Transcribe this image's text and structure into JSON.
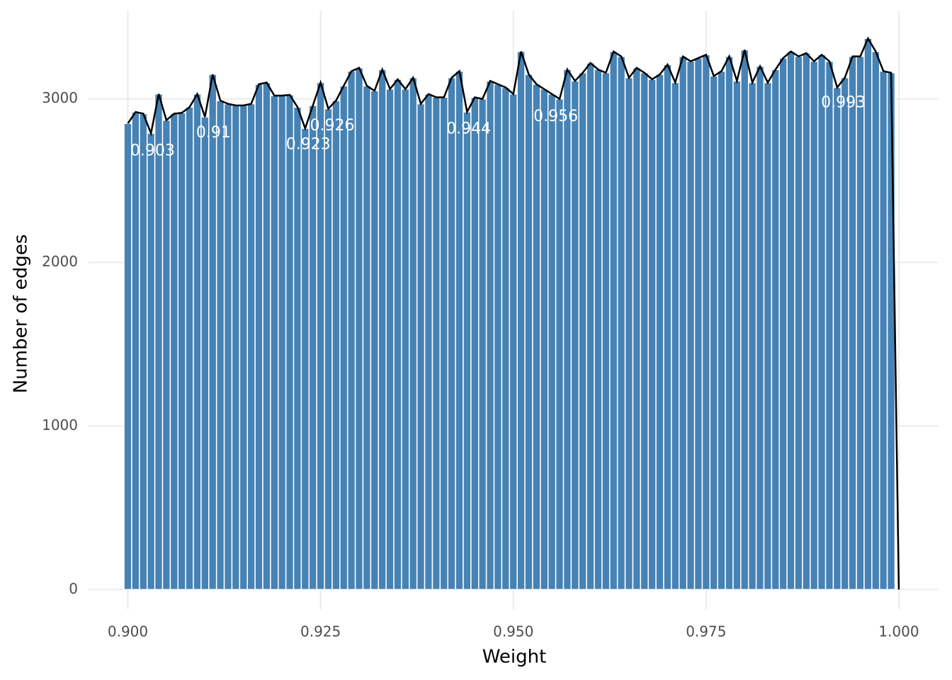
{
  "chart_data": {
    "type": "histogram",
    "xlabel": "Weight",
    "ylabel": "Number of edges",
    "bins": [
      0.8995,
      0.9005,
      0.9015,
      0.9025,
      0.9035,
      0.9045,
      0.9055,
      0.9065,
      0.9075,
      0.9085,
      0.9095,
      0.9105,
      0.9115,
      0.9125,
      0.9135,
      0.9145,
      0.9155,
      0.9165,
      0.9175,
      0.9185,
      0.9195,
      0.9205,
      0.9215,
      0.9225,
      0.9235,
      0.9245,
      0.9255,
      0.9265,
      0.9275,
      0.9285,
      0.9295,
      0.9305,
      0.9315,
      0.9325,
      0.9335,
      0.9345,
      0.9355,
      0.9365,
      0.9375,
      0.9385,
      0.9395,
      0.9405,
      0.9415,
      0.9425,
      0.9435,
      0.9445,
      0.9455,
      0.9465,
      0.9475,
      0.9485,
      0.9495,
      0.9505,
      0.9515,
      0.9525,
      0.9535,
      0.9545,
      0.9555,
      0.9565,
      0.9575,
      0.9585,
      0.9595,
      0.9605,
      0.9615,
      0.9625,
      0.9635,
      0.9645,
      0.9655,
      0.9665,
      0.9675,
      0.9685,
      0.9695,
      0.9705,
      0.9715,
      0.9725,
      0.9735,
      0.9745,
      0.9755,
      0.9765,
      0.9775,
      0.9785,
      0.9795,
      0.9805,
      0.9815,
      0.9825,
      0.9835,
      0.9845,
      0.9855,
      0.9865,
      0.9875,
      0.9885,
      0.9895,
      0.9905,
      0.9915,
      0.9925,
      0.9935,
      0.9945,
      0.9955,
      0.9965,
      0.9975,
      0.9985,
      0.9995,
      1.0005
    ],
    "counts": [
      2850,
      2920,
      2910,
      2790,
      3030,
      2870,
      2910,
      2915,
      2950,
      3030,
      2890,
      3150,
      2990,
      2970,
      2960,
      2960,
      2970,
      3090,
      3100,
      3020,
      3020,
      3025,
      2950,
      2820,
      2960,
      3100,
      2940,
      2990,
      3080,
      3170,
      3190,
      3080,
      3050,
      3180,
      3060,
      3120,
      3060,
      3130,
      2970,
      3030,
      3010,
      3010,
      3130,
      3170,
      2920,
      3010,
      3000,
      3110,
      3090,
      3070,
      3030,
      3290,
      3150,
      3090,
      3060,
      3030,
      3000,
      3180,
      3110,
      3160,
      3220,
      3180,
      3160,
      3290,
      3260,
      3130,
      3190,
      3160,
      3120,
      3150,
      3210,
      3100,
      3260,
      3230,
      3250,
      3270,
      3140,
      3170,
      3260,
      3110,
      3300,
      3100,
      3200,
      3100,
      3180,
      3250,
      3290,
      3260,
      3280,
      3230,
      3270,
      3230,
      3070,
      3130,
      3260,
      3260,
      3370,
      3290,
      3170,
      3160,
      0
    ],
    "color": "#4682b4",
    "line_color": "#000000",
    "annotations": [
      {
        "text": "0.903",
        "x": 0.9032,
        "y": 2680
      },
      {
        "text": "0.91",
        "x": 0.9111,
        "y": 2790
      },
      {
        "text": "0.923",
        "x": 0.9234,
        "y": 2720
      },
      {
        "text": "0.926",
        "x": 0.9265,
        "y": 2835
      },
      {
        "text": "0.944",
        "x": 0.9442,
        "y": 2815
      },
      {
        "text": "0.956",
        "x": 0.9555,
        "y": 2890
      },
      {
        "text": "0.993",
        "x": 0.9928,
        "y": 2975
      }
    ],
    "xlim": [
      0.8949,
      1.00515
    ],
    "ylim": [
      -120,
      3540
    ],
    "xticks": [
      {
        "value": 0.9,
        "label": "0.900"
      },
      0.925,
      {
        "value": 0.95,
        "label": "0.950"
      },
      0.975,
      {
        "value": 1,
        "label": "1.000"
      }
    ],
    "yticks": [
      0,
      1000,
      2000,
      3000
    ],
    "grid": true
  }
}
